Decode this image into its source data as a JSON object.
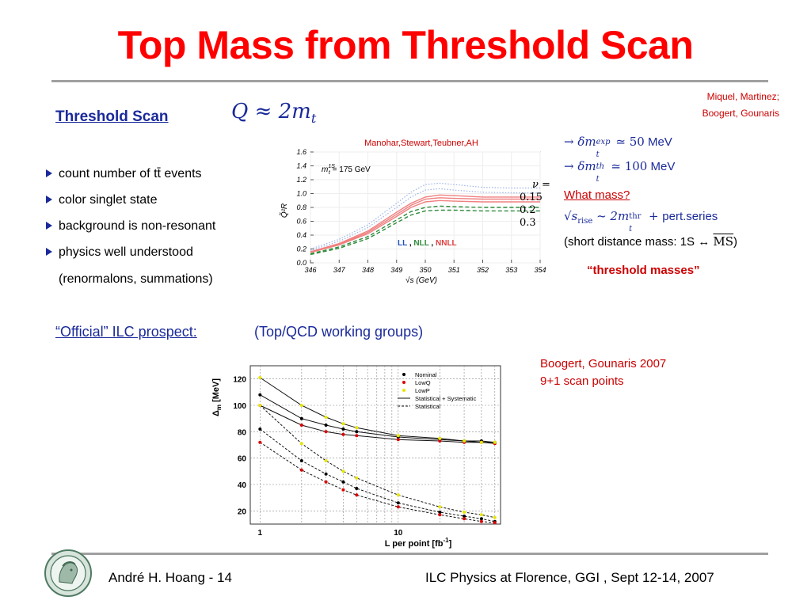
{
  "slide": {
    "title": "Top Mass from Threshold Scan",
    "credit_line1": "Miquel, Martinez;",
    "credit_line2": "Boogert,  Gounaris",
    "threshold_heading": "Threshold Scan",
    "threshold_formula": "Q ≈ 2m",
    "threshold_formula_sub": "t",
    "bullets": [
      "count number of tt̄ events",
      "color singlet state",
      "background is non-resonant",
      "physics well understood"
    ],
    "bullet_note": "(renormalons, summations)",
    "mexp_line": "→ δm",
    "mexp_sup": "exp",
    "mexp_sub": "t",
    "mexp_value": " ≃ 50",
    "mexp_unit": " MeV",
    "mth_line": "→ δm",
    "mth_sup": "th",
    "mth_sub": "t",
    "mth_value": " ≃ 100",
    "mth_unit": " MeV",
    "what_mass": "What mass?",
    "rise_sqrt": "√s",
    "rise_sub": "rise",
    "rise_approx": " ~ 2m",
    "rise_sup": "thr",
    "rise_sub2": "t",
    "rise_plus": " + ",
    "rise_series": "pert.series",
    "short_distance": "(short distance mass:  1S ↔ ",
    "short_distance_ms": "MS",
    "short_distance_end": ")",
    "threshold_masses": "“threshold masses”",
    "official_label": "“Official” ILC prospect:",
    "official_groups": "(Top/QCD working groups)",
    "boogert_line1": "Boogert, Gounaris 2007",
    "boogert_line2": "9+1 scan points",
    "footer_left": "André H. Hoang  - 14",
    "footer_right": "ILC Physics at Florence, GGI , Sept 12-14, 2007"
  },
  "colors": {
    "title": "#ff0000",
    "accent_blue": "#1a2a9a",
    "accent_red": "#cc0000",
    "rule": "#a0a0a0"
  },
  "icons": {
    "logo": "university-seal"
  },
  "chart_data": [
    {
      "type": "line",
      "title": "",
      "authors": "Manohar,Stewart,Teubner,AH",
      "xlabel": "√s (GeV)",
      "ylabel": "Q̃²R",
      "annotation_mass": "m",
      "annotation_mass_sup": "1S",
      "annotation_mass_sub": "t",
      "annotation_mass_value": " = 175 GeV",
      "nu_label": "ν =",
      "nu_values": [
        "0.15",
        "0.2",
        "0.3"
      ],
      "legend": {
        "ll": "LL",
        "sep1": " , ",
        "nll": "NLL",
        "sep2": " , ",
        "nnll": "NNLL"
      },
      "xlim": [
        346,
        354
      ],
      "ylim": [
        0.0,
        1.6
      ],
      "x_ticks": [
        "346",
        "347",
        "348",
        "349",
        "350",
        "351",
        "352",
        "353",
        "354"
      ],
      "y_ticks": [
        "0.0",
        "0.2",
        "0.4",
        "0.6",
        "0.8",
        "1.0",
        "1.2",
        "1.4",
        "1.6"
      ],
      "x": [
        346,
        347,
        348,
        349,
        349.5,
        350,
        350.5,
        351,
        352,
        353,
        354
      ],
      "series": [
        {
          "name": "LL",
          "style": "dotted",
          "color": "#9db4e6",
          "values": [
            0.2,
            0.34,
            0.55,
            0.86,
            1.02,
            1.13,
            1.15,
            1.13,
            1.09,
            1.08,
            1.08
          ]
        },
        {
          "name": "LL",
          "style": "dotted",
          "color": "#9db4e6",
          "values": [
            0.18,
            0.31,
            0.51,
            0.8,
            0.95,
            1.05,
            1.07,
            1.05,
            1.02,
            1.01,
            1.01
          ]
        },
        {
          "name": "NNLL",
          "style": "solid",
          "color": "#f08080",
          "values": [
            0.16,
            0.28,
            0.46,
            0.73,
            0.86,
            0.95,
            0.98,
            0.97,
            0.95,
            0.95,
            0.95
          ]
        },
        {
          "name": "NNLL",
          "style": "solid",
          "color": "#f08080",
          "values": [
            0.16,
            0.27,
            0.44,
            0.7,
            0.83,
            0.92,
            0.94,
            0.93,
            0.92,
            0.92,
            0.92
          ]
        },
        {
          "name": "NNLL",
          "style": "solid",
          "color": "#f08080",
          "values": [
            0.15,
            0.26,
            0.42,
            0.67,
            0.8,
            0.88,
            0.9,
            0.89,
            0.88,
            0.88,
            0.88
          ]
        },
        {
          "name": "NLL",
          "style": "dashed",
          "color": "#2e8b3a",
          "values": [
            0.13,
            0.23,
            0.38,
            0.62,
            0.74,
            0.8,
            0.82,
            0.81,
            0.8,
            0.8,
            0.8
          ]
        },
        {
          "name": "NLL",
          "style": "dashed",
          "color": "#2e8b3a",
          "values": [
            0.12,
            0.21,
            0.35,
            0.58,
            0.69,
            0.75,
            0.76,
            0.76,
            0.75,
            0.75,
            0.75
          ]
        }
      ]
    },
    {
      "type": "line",
      "title": "",
      "xlabel": "L per point [fb",
      "xlabel_sup": "-1",
      "xlabel_end": "]",
      "ylabel": "Δ",
      "ylabel_sub": "m",
      "ylabel_end": " [MeV]",
      "xscale": "log",
      "xlim": [
        0.85,
        55
      ],
      "ylim": [
        10,
        130
      ],
      "x_ticks": [
        "1",
        "10"
      ],
      "y_ticks": [
        "20",
        "40",
        "60",
        "80",
        "100",
        "120"
      ],
      "legend_placement": "top-right",
      "legend": [
        "Nominal",
        "LowQ",
        "LowP",
        "Statistical + Systematic",
        "Statistical"
      ],
      "x": [
        1,
        2,
        3,
        4,
        5,
        10,
        20,
        30,
        40,
        50
      ],
      "points": [
        {
          "name": "Nominal",
          "color": "#000000",
          "values": [
            108,
            90,
            85,
            82,
            80,
            76,
            74,
            73,
            73,
            72
          ]
        },
        {
          "name": "LowQ",
          "color": "#dd0000",
          "values": [
            100,
            85,
            80,
            78,
            77,
            74,
            73,
            72,
            72,
            71
          ]
        },
        {
          "name": "LowP",
          "color": "#e6e600",
          "values": [
            121,
            100,
            91,
            86,
            83,
            77,
            75,
            73,
            72,
            72
          ]
        },
        {
          "name": "Nominal",
          "color": "#000000",
          "values": [
            82,
            58,
            48,
            42,
            37,
            26,
            19,
            16,
            14,
            12
          ]
        },
        {
          "name": "LowQ",
          "color": "#dd0000",
          "values": [
            72,
            51,
            42,
            36,
            32,
            23,
            17,
            14,
            12,
            11
          ]
        },
        {
          "name": "LowP",
          "color": "#e6e600",
          "values": [
            100,
            71,
            58,
            50,
            45,
            32,
            23,
            19,
            17,
            15
          ]
        }
      ],
      "lines": [
        {
          "name": "Statistical + Systematic",
          "style": "solid",
          "values": [
            121,
            100,
            91,
            86,
            83,
            77,
            75,
            73,
            72,
            72
          ]
        },
        {
          "name": "Statistical + Systematic",
          "style": "solid",
          "values": [
            108,
            90,
            85,
            82,
            80,
            76,
            74,
            73,
            73,
            72
          ]
        },
        {
          "name": "Statistical + Systematic",
          "style": "solid",
          "values": [
            100,
            85,
            80,
            78,
            77,
            74,
            73,
            72,
            72,
            71
          ]
        },
        {
          "name": "Statistical",
          "style": "dashed",
          "values": [
            100,
            71,
            58,
            50,
            45,
            32,
            23,
            19,
            17,
            15
          ]
        },
        {
          "name": "Statistical",
          "style": "dashed",
          "values": [
            82,
            58,
            48,
            42,
            37,
            26,
            19,
            16,
            14,
            12
          ]
        },
        {
          "name": "Statistical",
          "style": "dashed",
          "values": [
            72,
            51,
            42,
            36,
            32,
            23,
            17,
            14,
            12,
            11
          ]
        }
      ]
    }
  ]
}
